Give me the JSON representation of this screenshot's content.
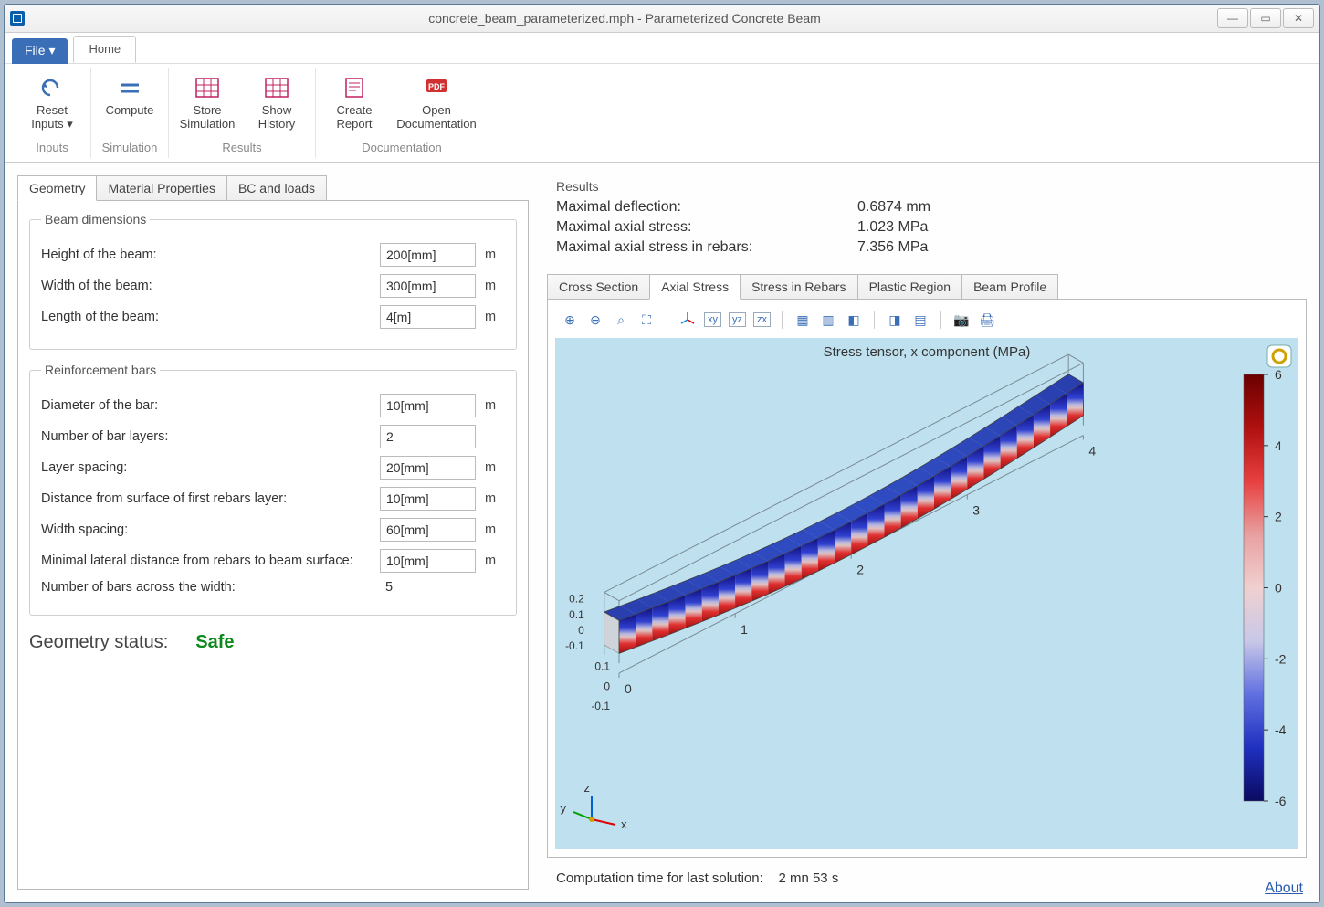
{
  "window": {
    "title": "concrete_beam_parameterized.mph - Parameterized Concrete Beam"
  },
  "menu": {
    "file": "File ▾",
    "home": "Home"
  },
  "ribbon": {
    "inputs": {
      "reset": "Reset Inputs ▾",
      "label": "Inputs"
    },
    "simulation": {
      "compute": "Compute",
      "label": "Simulation"
    },
    "results": {
      "store": "Store Simulation",
      "show": "Show History",
      "label": "Results"
    },
    "documentation": {
      "create": "Create Report",
      "open": "Open Documentation",
      "label": "Documentation"
    }
  },
  "left_tabs": [
    "Geometry",
    "Material Properties",
    "BC and loads"
  ],
  "beam_dims": {
    "legend": "Beam dimensions",
    "rows": [
      {
        "label": "Height of the beam:",
        "value": "200[mm]",
        "unit": "m"
      },
      {
        "label": "Width of the beam:",
        "value": "300[mm]",
        "unit": "m"
      },
      {
        "label": "Length of the beam:",
        "value": "4[m]",
        "unit": "m"
      }
    ]
  },
  "rebars": {
    "legend": "Reinforcement bars",
    "rows": [
      {
        "label": "Diameter of the bar:",
        "value": "10[mm]",
        "unit": "m"
      },
      {
        "label": "Number of bar layers:",
        "value": "2",
        "unit": ""
      },
      {
        "label": "Layer spacing:",
        "value": "20[mm]",
        "unit": "m"
      },
      {
        "label": "Distance from surface of first rebars layer:",
        "value": "10[mm]",
        "unit": "m"
      },
      {
        "label": "Width spacing:",
        "value": "60[mm]",
        "unit": "m"
      },
      {
        "label": "Minimal lateral distance from rebars to beam surface:",
        "value": "10[mm]",
        "unit": "m"
      }
    ],
    "readonly": {
      "label": "Number of bars across the width:",
      "value": "5"
    }
  },
  "status": {
    "label": "Geometry status:",
    "value": "Safe",
    "color": "#0a8a1a"
  },
  "results": {
    "header": "Results",
    "rows": [
      {
        "k": "Maximal deflection:",
        "v": "0.6874 mm"
      },
      {
        "k": "Maximal axial stress:",
        "v": "1.023 MPa"
      },
      {
        "k": "Maximal axial stress in rebars:",
        "v": "7.356 MPa"
      }
    ]
  },
  "result_tabs": [
    "Cross Section",
    "Axial Stress",
    "Stress in Rebars",
    "Plastic Region",
    "Beam Profile"
  ],
  "result_active_tab": 1,
  "plot": {
    "title": "Stress tensor, x component (MPa)",
    "bg_color": "#bfe1ef",
    "colorbar": {
      "ticks": [
        6,
        4,
        2,
        0,
        -2,
        -4,
        -6
      ],
      "gradient": [
        "#6b0000",
        "#b01010",
        "#e84040",
        "#e8a0a0",
        "#f0d0d0",
        "#c8c8e8",
        "#6070e0",
        "#2030c0",
        "#0a0a60"
      ]
    },
    "x_axis_ticks": [
      0,
      1,
      2,
      3,
      4
    ],
    "z_ticks_left": [
      "0.2",
      "0.1",
      "0",
      "-0.1"
    ],
    "z_ticks_front": [
      "0.1",
      "0",
      "-0.1"
    ]
  },
  "footer": {
    "label": "Computation time for last solution:",
    "value": "2   mn   53   s",
    "about": "About"
  }
}
